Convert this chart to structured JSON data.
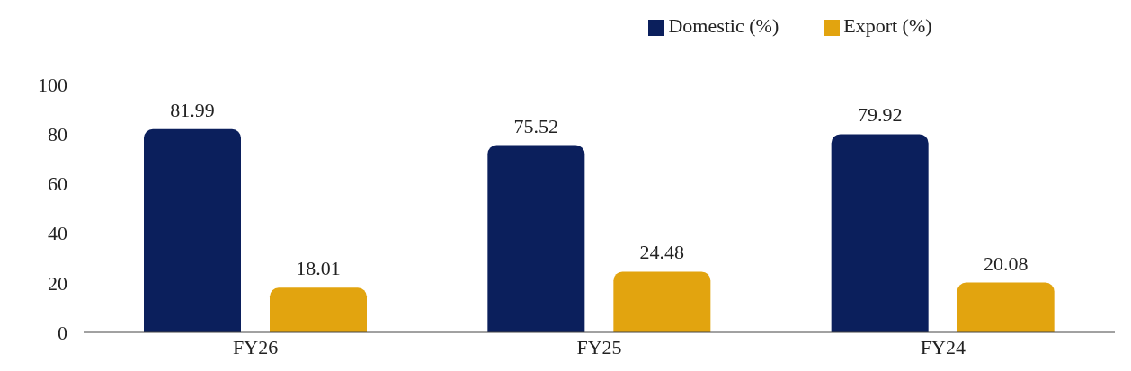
{
  "chart_data": {
    "type": "bar",
    "categories": [
      "FY26",
      "FY25",
      "FY24"
    ],
    "series": [
      {
        "name": "Domestic (%)",
        "color": "#0b1f5c",
        "values": [
          81.99,
          75.52,
          79.92
        ]
      },
      {
        "name": "Export (%)",
        "color": "#e2a40f",
        "values": [
          18.01,
          24.48,
          20.08
        ]
      }
    ],
    "ylim": [
      0,
      100
    ],
    "yticks": [
      0,
      20,
      40,
      60,
      80,
      100
    ],
    "grid": false,
    "legend": "top",
    "data_labels": true
  }
}
